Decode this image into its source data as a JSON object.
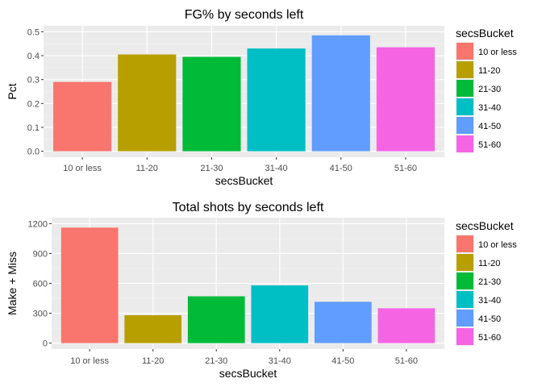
{
  "chart_data": [
    {
      "type": "bar",
      "title": "FG% by seconds left",
      "xlabel": "secsBucket",
      "ylabel": "Pct",
      "categories": [
        "10 or less",
        "11-20",
        "21-30",
        "31-40",
        "41-50",
        "51-60"
      ],
      "values": [
        0.29,
        0.405,
        0.395,
        0.43,
        0.485,
        0.435
      ],
      "ylim": [
        0,
        0.5
      ],
      "yticks": [
        0.0,
        0.1,
        0.2,
        0.3,
        0.4,
        0.5
      ],
      "ytick_labels": [
        "0.0",
        "0.1",
        "0.2",
        "0.3",
        "0.4",
        "0.5"
      ],
      "grid": true,
      "legend": {
        "title": "secsBucket",
        "position": "right",
        "items": [
          "10 or less",
          "11-20",
          "21-30",
          "31-40",
          "41-50",
          "51-60"
        ]
      }
    },
    {
      "type": "bar",
      "title": "Total shots by seconds left",
      "xlabel": "secsBucket",
      "ylabel": "Make + Miss",
      "categories": [
        "10 or less",
        "11-20",
        "21-30",
        "31-40",
        "41-50",
        "51-60"
      ],
      "values": [
        1160,
        280,
        470,
        580,
        415,
        350
      ],
      "ylim": [
        0,
        1200
      ],
      "yticks": [
        0,
        300,
        600,
        900,
        1200
      ],
      "ytick_labels": [
        "0",
        "300",
        "600",
        "900",
        "1200"
      ],
      "grid": true,
      "legend": {
        "title": "secsBucket",
        "position": "right",
        "items": [
          "10 or less",
          "11-20",
          "21-30",
          "31-40",
          "41-50",
          "51-60"
        ]
      }
    }
  ],
  "colors": {
    "10 or less": "#F8766D",
    "11-20": "#B79F00",
    "21-30": "#00BA38",
    "31-40": "#00BFC4",
    "41-50": "#619CFF",
    "51-60": "#F564E3",
    "panel": "#EBEBEB",
    "grid_major": "#FFFFFF",
    "grid_minor": "#F5F5F5",
    "axis_text": "#4D4D4D",
    "title_text": "#000000"
  }
}
